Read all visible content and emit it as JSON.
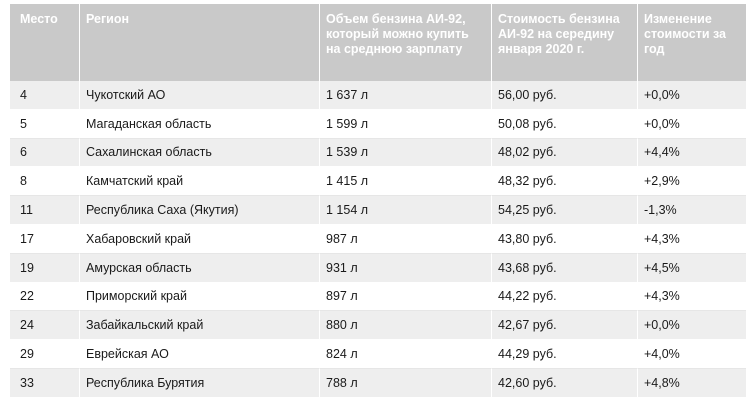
{
  "table": {
    "headers": {
      "place": "Место",
      "region": "Регион",
      "volume": "Объем бензина АИ-92, который можно купить на среднюю зарплату",
      "cost": "Стоимость бензина АИ-92 на середину января 2020 г.",
      "change": "Изменение стоимости за год"
    },
    "rows": [
      {
        "place": "4",
        "region": "Чукотский АО",
        "volume": "1 637 л",
        "cost": "56,00 руб.",
        "change": "+0,0%"
      },
      {
        "place": "5",
        "region": "Магаданская область",
        "volume": "1 599 л",
        "cost": "50,08 руб.",
        "change": "+0,0%"
      },
      {
        "place": "6",
        "region": "Сахалинская область",
        "volume": "1 539 л",
        "cost": "48,02 руб.",
        "change": "+4,4%"
      },
      {
        "place": "8",
        "region": "Камчатский край",
        "volume": "1 415 л",
        "cost": "48,32 руб.",
        "change": "+2,9%"
      },
      {
        "place": "11",
        "region": "Республика Саха (Якутия)",
        "volume": "1 154 л",
        "cost": "54,25 руб.",
        "change": "-1,3%"
      },
      {
        "place": "17",
        "region": "Хабаровский край",
        "volume": "987 л",
        "cost": "43,80 руб.",
        "change": "+4,3%"
      },
      {
        "place": "19",
        "region": "Амурская область",
        "volume": "931 л",
        "cost": "43,68 руб.",
        "change": "+4,5%"
      },
      {
        "place": "22",
        "region": "Приморский край",
        "volume": "897 л",
        "cost": "44,22 руб.",
        "change": "+4,3%"
      },
      {
        "place": "24",
        "region": "Забайкальский край",
        "volume": "880 л",
        "cost": "42,67 руб.",
        "change": "+0,0%"
      },
      {
        "place": "29",
        "region": "Еврейская АО",
        "volume": "824 л",
        "cost": "44,29 руб.",
        "change": "+4,0%"
      },
      {
        "place": "33",
        "region": "Республика Бурятия",
        "volume": "788 л",
        "cost": "42,60 руб.",
        "change": "+4,8%"
      }
    ]
  }
}
